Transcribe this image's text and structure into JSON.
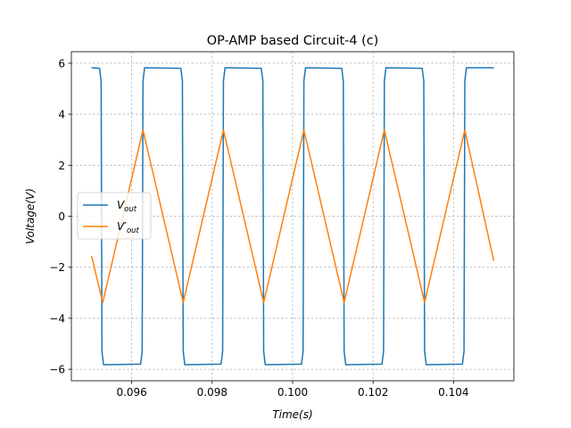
{
  "chart_data": {
    "type": "line",
    "title": "OP-AMP based Circuit-4 (c)",
    "xlabel": "Time(s)",
    "ylabel": "Voltage(V)",
    "xlim": [
      0.0945,
      0.1055
    ],
    "ylim": [
      -6.45,
      6.45
    ],
    "xticks": [
      0.096,
      0.098,
      0.1,
      0.102,
      0.104
    ],
    "xtick_labels": [
      "0.096",
      "0.098",
      "0.100",
      "0.102",
      "0.104"
    ],
    "yticks": [
      -6,
      -4,
      -2,
      0,
      2,
      4,
      6
    ],
    "ytick_labels": [
      "−6",
      "−4",
      "−2",
      "0",
      "2",
      "4",
      "6"
    ],
    "grid": true,
    "legend_position": "center-left",
    "series": [
      {
        "name": "V_out",
        "legend": {
          "main": "V",
          "sub": "out"
        },
        "color": "#1f77b4",
        "x": [
          0.095,
          0.0952,
          0.09524,
          0.09526,
          0.0953,
          0.09622,
          0.09626,
          0.09628,
          0.09632,
          0.09722,
          0.09726,
          0.09728,
          0.09732,
          0.09822,
          0.09826,
          0.09828,
          0.09832,
          0.09922,
          0.09926,
          0.09928,
          0.09932,
          0.10022,
          0.10026,
          0.10028,
          0.10032,
          0.10122,
          0.10126,
          0.10128,
          0.10132,
          0.10222,
          0.10226,
          0.10228,
          0.10232,
          0.10322,
          0.10326,
          0.10328,
          0.10332,
          0.10422,
          0.10426,
          0.10428,
          0.10432,
          0.105
        ],
        "y": [
          5.82,
          5.8,
          5.3,
          -5.3,
          -5.82,
          -5.8,
          -5.3,
          5.3,
          5.82,
          5.8,
          5.3,
          -5.3,
          -5.82,
          -5.8,
          -5.3,
          5.3,
          5.82,
          5.8,
          5.3,
          -5.3,
          -5.82,
          -5.8,
          -5.3,
          5.3,
          5.82,
          5.8,
          5.3,
          -5.3,
          -5.82,
          -5.8,
          -5.3,
          5.3,
          5.82,
          5.8,
          5.3,
          -5.3,
          -5.82,
          -5.8,
          -5.3,
          5.3,
          5.82,
          5.82
        ]
      },
      {
        "name": "V'_out",
        "legend": {
          "main": "V′",
          "sub": "out"
        },
        "color": "#ff7f0e",
        "x": [
          0.095,
          0.09528,
          0.09628,
          0.09728,
          0.09828,
          0.09928,
          0.10028,
          0.10128,
          0.10228,
          0.10328,
          0.10428,
          0.105
        ],
        "y": [
          -1.55,
          -3.38,
          3.38,
          -3.38,
          3.38,
          -3.38,
          3.38,
          -3.38,
          3.38,
          -3.38,
          3.38,
          -1.75
        ]
      }
    ]
  }
}
